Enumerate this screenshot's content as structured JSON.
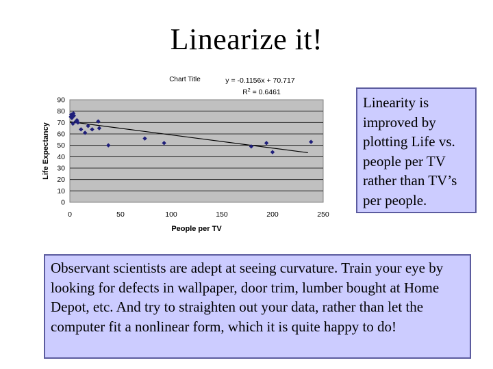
{
  "slide": {
    "title": "Linearize it!"
  },
  "notes": {
    "side": "Linearity is improved by plotting Life vs. people per TV rather than TV’s per people.",
    "bottom": "Observant scientists are adept at seeing curvature.  Train your eye by looking for defects in wallpaper, door trim, lumber bought at Home Depot, etc.  And try to straighten out your data, rather than let the computer fit a nonlinear form, which it is quite happy to do!"
  },
  "colors": {
    "plot_bg": "#c0c0c0",
    "marker": "#1f1f7a",
    "note_bg": "#ccccff",
    "note_border": "#5b5b9e"
  },
  "chart_data": {
    "type": "scatter",
    "title": "Chart Title",
    "equation": "y = -0.1156x + 70.717",
    "r_squared_label": "R",
    "r_squared_exp": "2",
    "r_squared_value": " = 0.6461",
    "xlabel": "People per TV",
    "ylabel": "Life Expectancy",
    "xlim": [
      0,
      250
    ],
    "ylim": [
      0,
      90
    ],
    "xticks": [
      0,
      50,
      100,
      150,
      200,
      250
    ],
    "yticks": [
      0,
      10,
      20,
      30,
      40,
      50,
      60,
      70,
      80,
      90
    ],
    "gridlines": "horizontal major",
    "trendline": {
      "slope": -0.1156,
      "intercept": 70.717,
      "x_range": [
        0,
        235
      ]
    },
    "points": [
      [
        1,
        75
      ],
      [
        1.5,
        77
      ],
      [
        2,
        74
      ],
      [
        2.5,
        76
      ],
      [
        3,
        69
      ],
      [
        3.5,
        78
      ],
      [
        4,
        76
      ],
      [
        6,
        71
      ],
      [
        7,
        72
      ],
      [
        8,
        70
      ],
      [
        11,
        64
      ],
      [
        15,
        61
      ],
      [
        18,
        67
      ],
      [
        22,
        64
      ],
      [
        28,
        71
      ],
      [
        29,
        65
      ],
      [
        38,
        50
      ],
      [
        74,
        56
      ],
      [
        93,
        52
      ],
      [
        179,
        49
      ],
      [
        194,
        52
      ],
      [
        200,
        44
      ],
      [
        238,
        53
      ]
    ]
  }
}
